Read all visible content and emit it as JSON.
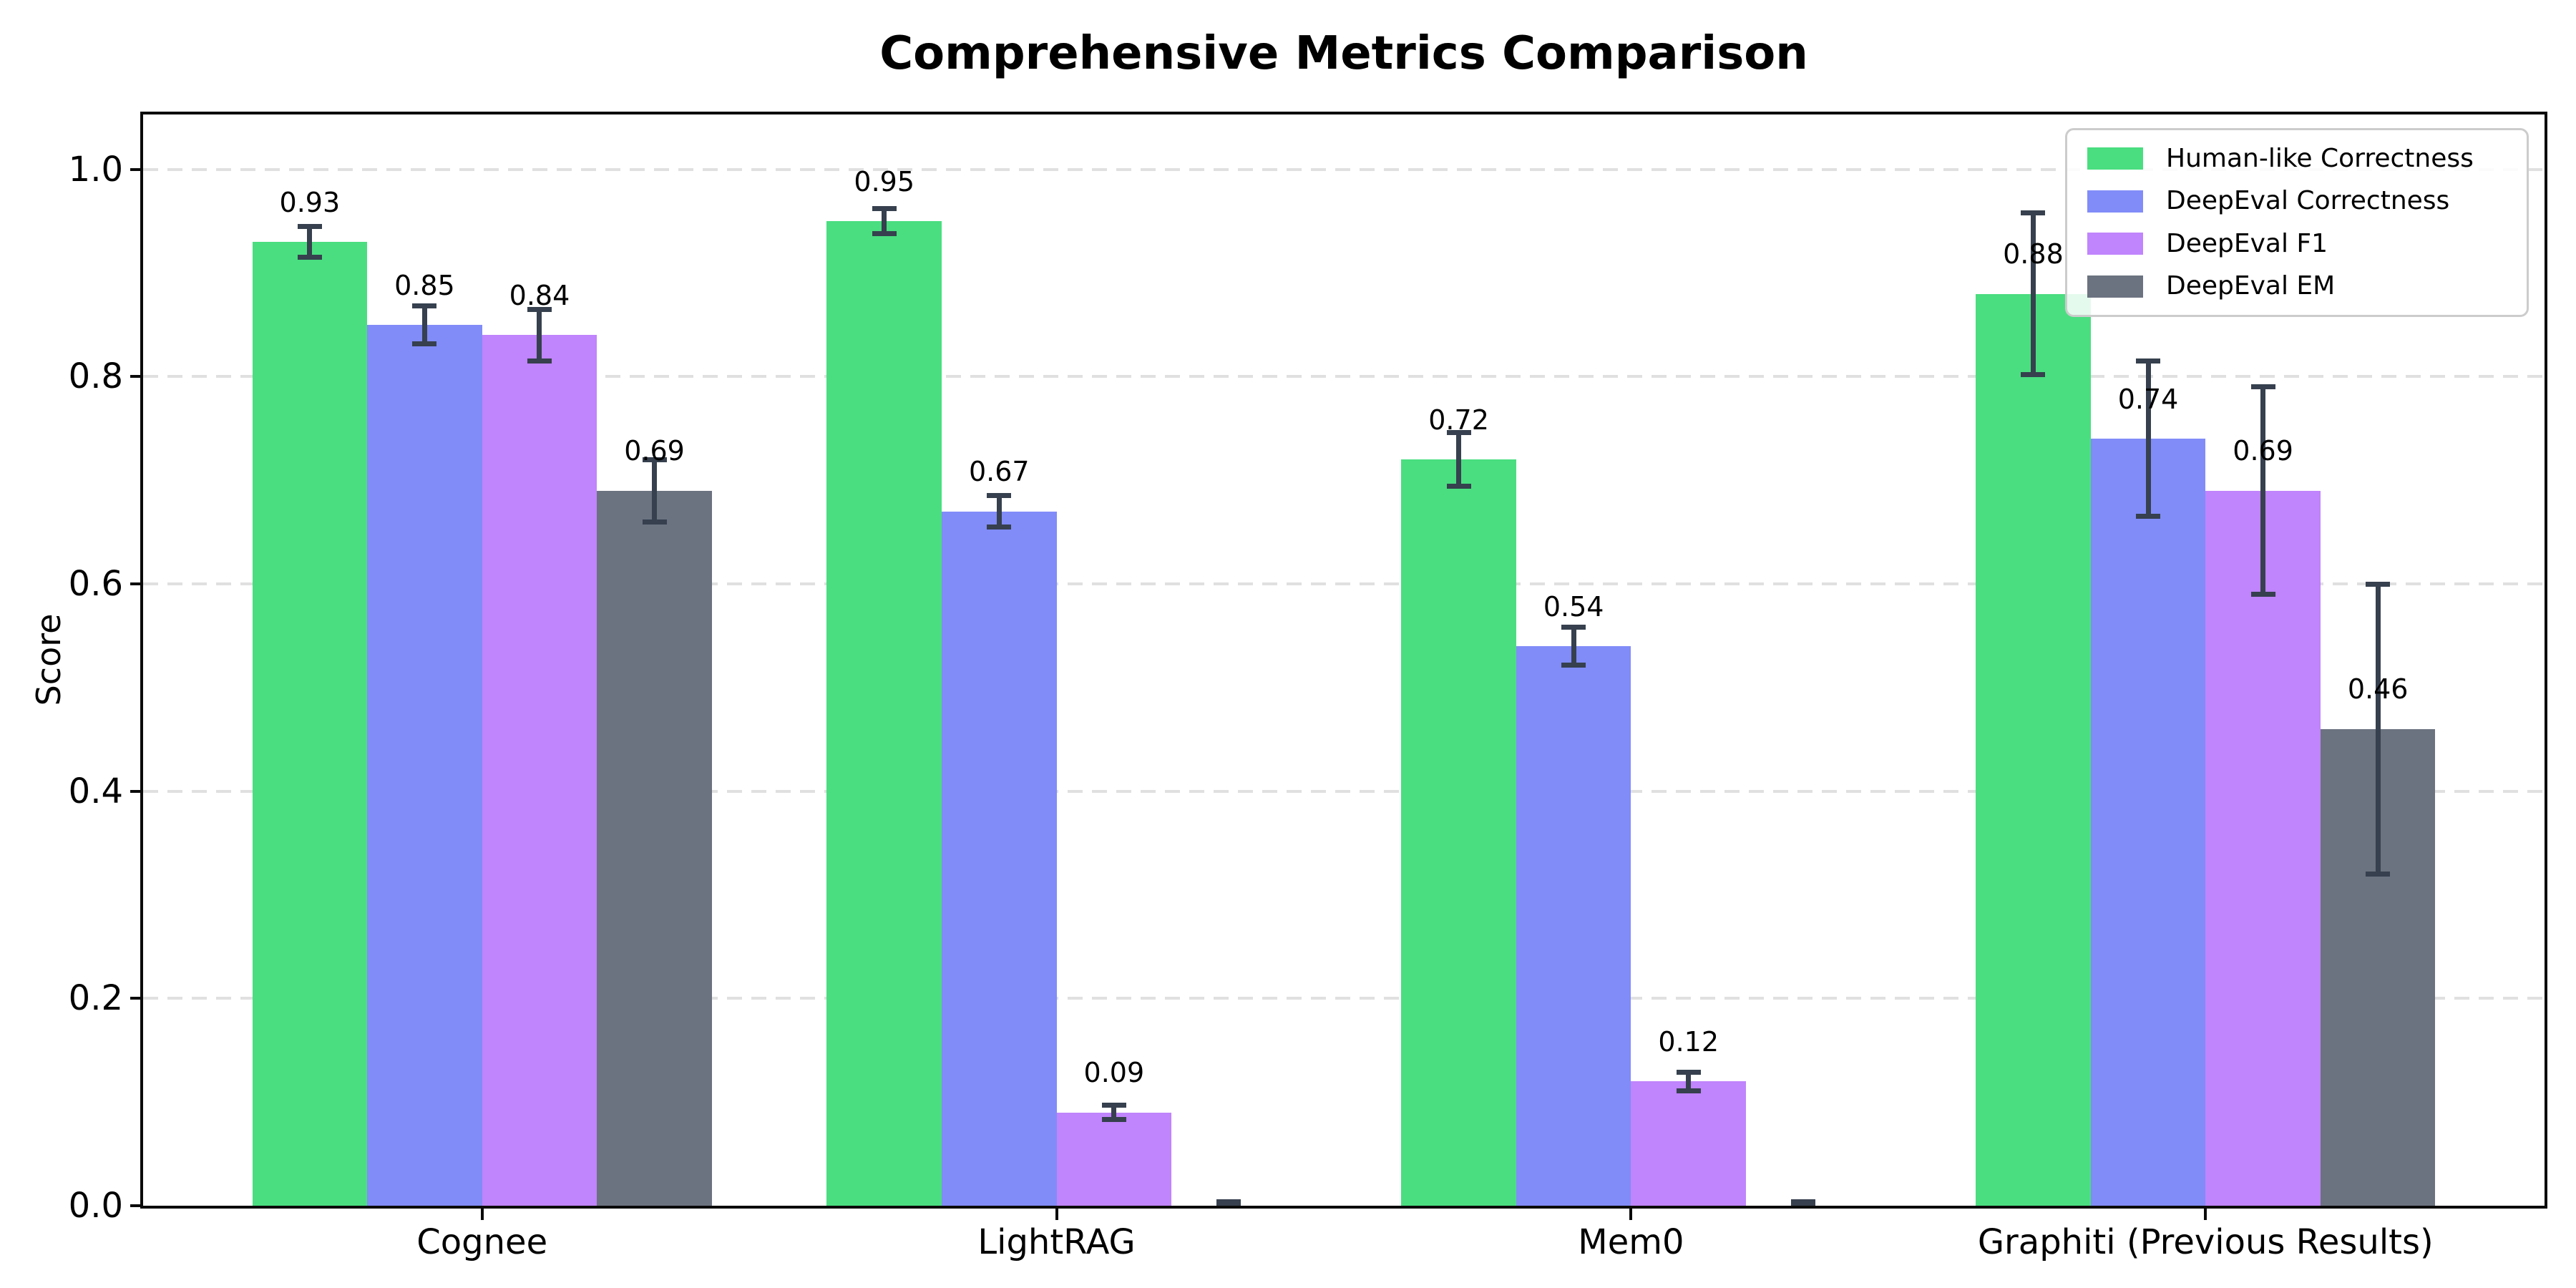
{
  "chart_data": {
    "type": "bar",
    "title": "Comprehensive Metrics Comparison",
    "ylabel": "Score",
    "categories": [
      "Cognee",
      "LightRAG",
      "Mem0",
      "Graphiti (Previous Results)"
    ],
    "series": [
      {
        "name": "Human-like Correctness",
        "color": "#4ade80",
        "values": [
          0.93,
          0.95,
          0.72,
          0.88
        ],
        "errors": [
          0.015,
          0.012,
          0.026,
          0.078
        ]
      },
      {
        "name": "DeepEval Correctness",
        "color": "#818cf8",
        "values": [
          0.85,
          0.67,
          0.54,
          0.74
        ],
        "errors": [
          0.018,
          0.015,
          0.018,
          0.075
        ]
      },
      {
        "name": "DeepEval F1",
        "color": "#c084fc",
        "values": [
          0.84,
          0.09,
          0.12,
          0.69
        ],
        "errors": [
          0.025,
          0.007,
          0.009,
          0.1
        ]
      },
      {
        "name": "DeepEval EM",
        "color": "#6b7280",
        "values": [
          0.69,
          0.0,
          0.0,
          0.46
        ],
        "errors": [
          0.03,
          0.004,
          0.004,
          0.14
        ]
      }
    ],
    "value_labels": [
      [
        "0.93",
        "0.95",
        "0.72",
        "0.88"
      ],
      [
        "0.85",
        "0.67",
        "0.54",
        "0.74"
      ],
      [
        "0.84",
        "0.09",
        "0.12",
        "0.69"
      ],
      [
        "0.69",
        "",
        "",
        "0.46"
      ]
    ],
    "yticks": [
      "0.0",
      "0.2",
      "0.4",
      "0.6",
      "0.8",
      "1.0"
    ],
    "ytick_values": [
      0.0,
      0.2,
      0.4,
      0.6,
      0.8,
      1.0
    ],
    "ylim": [
      0,
      1.053
    ],
    "grid": "horizontal-dashed",
    "legend_position": "upper-right",
    "error_bar_color": "#36404e",
    "text_color": "#000000",
    "background_color": "#ffffff"
  }
}
